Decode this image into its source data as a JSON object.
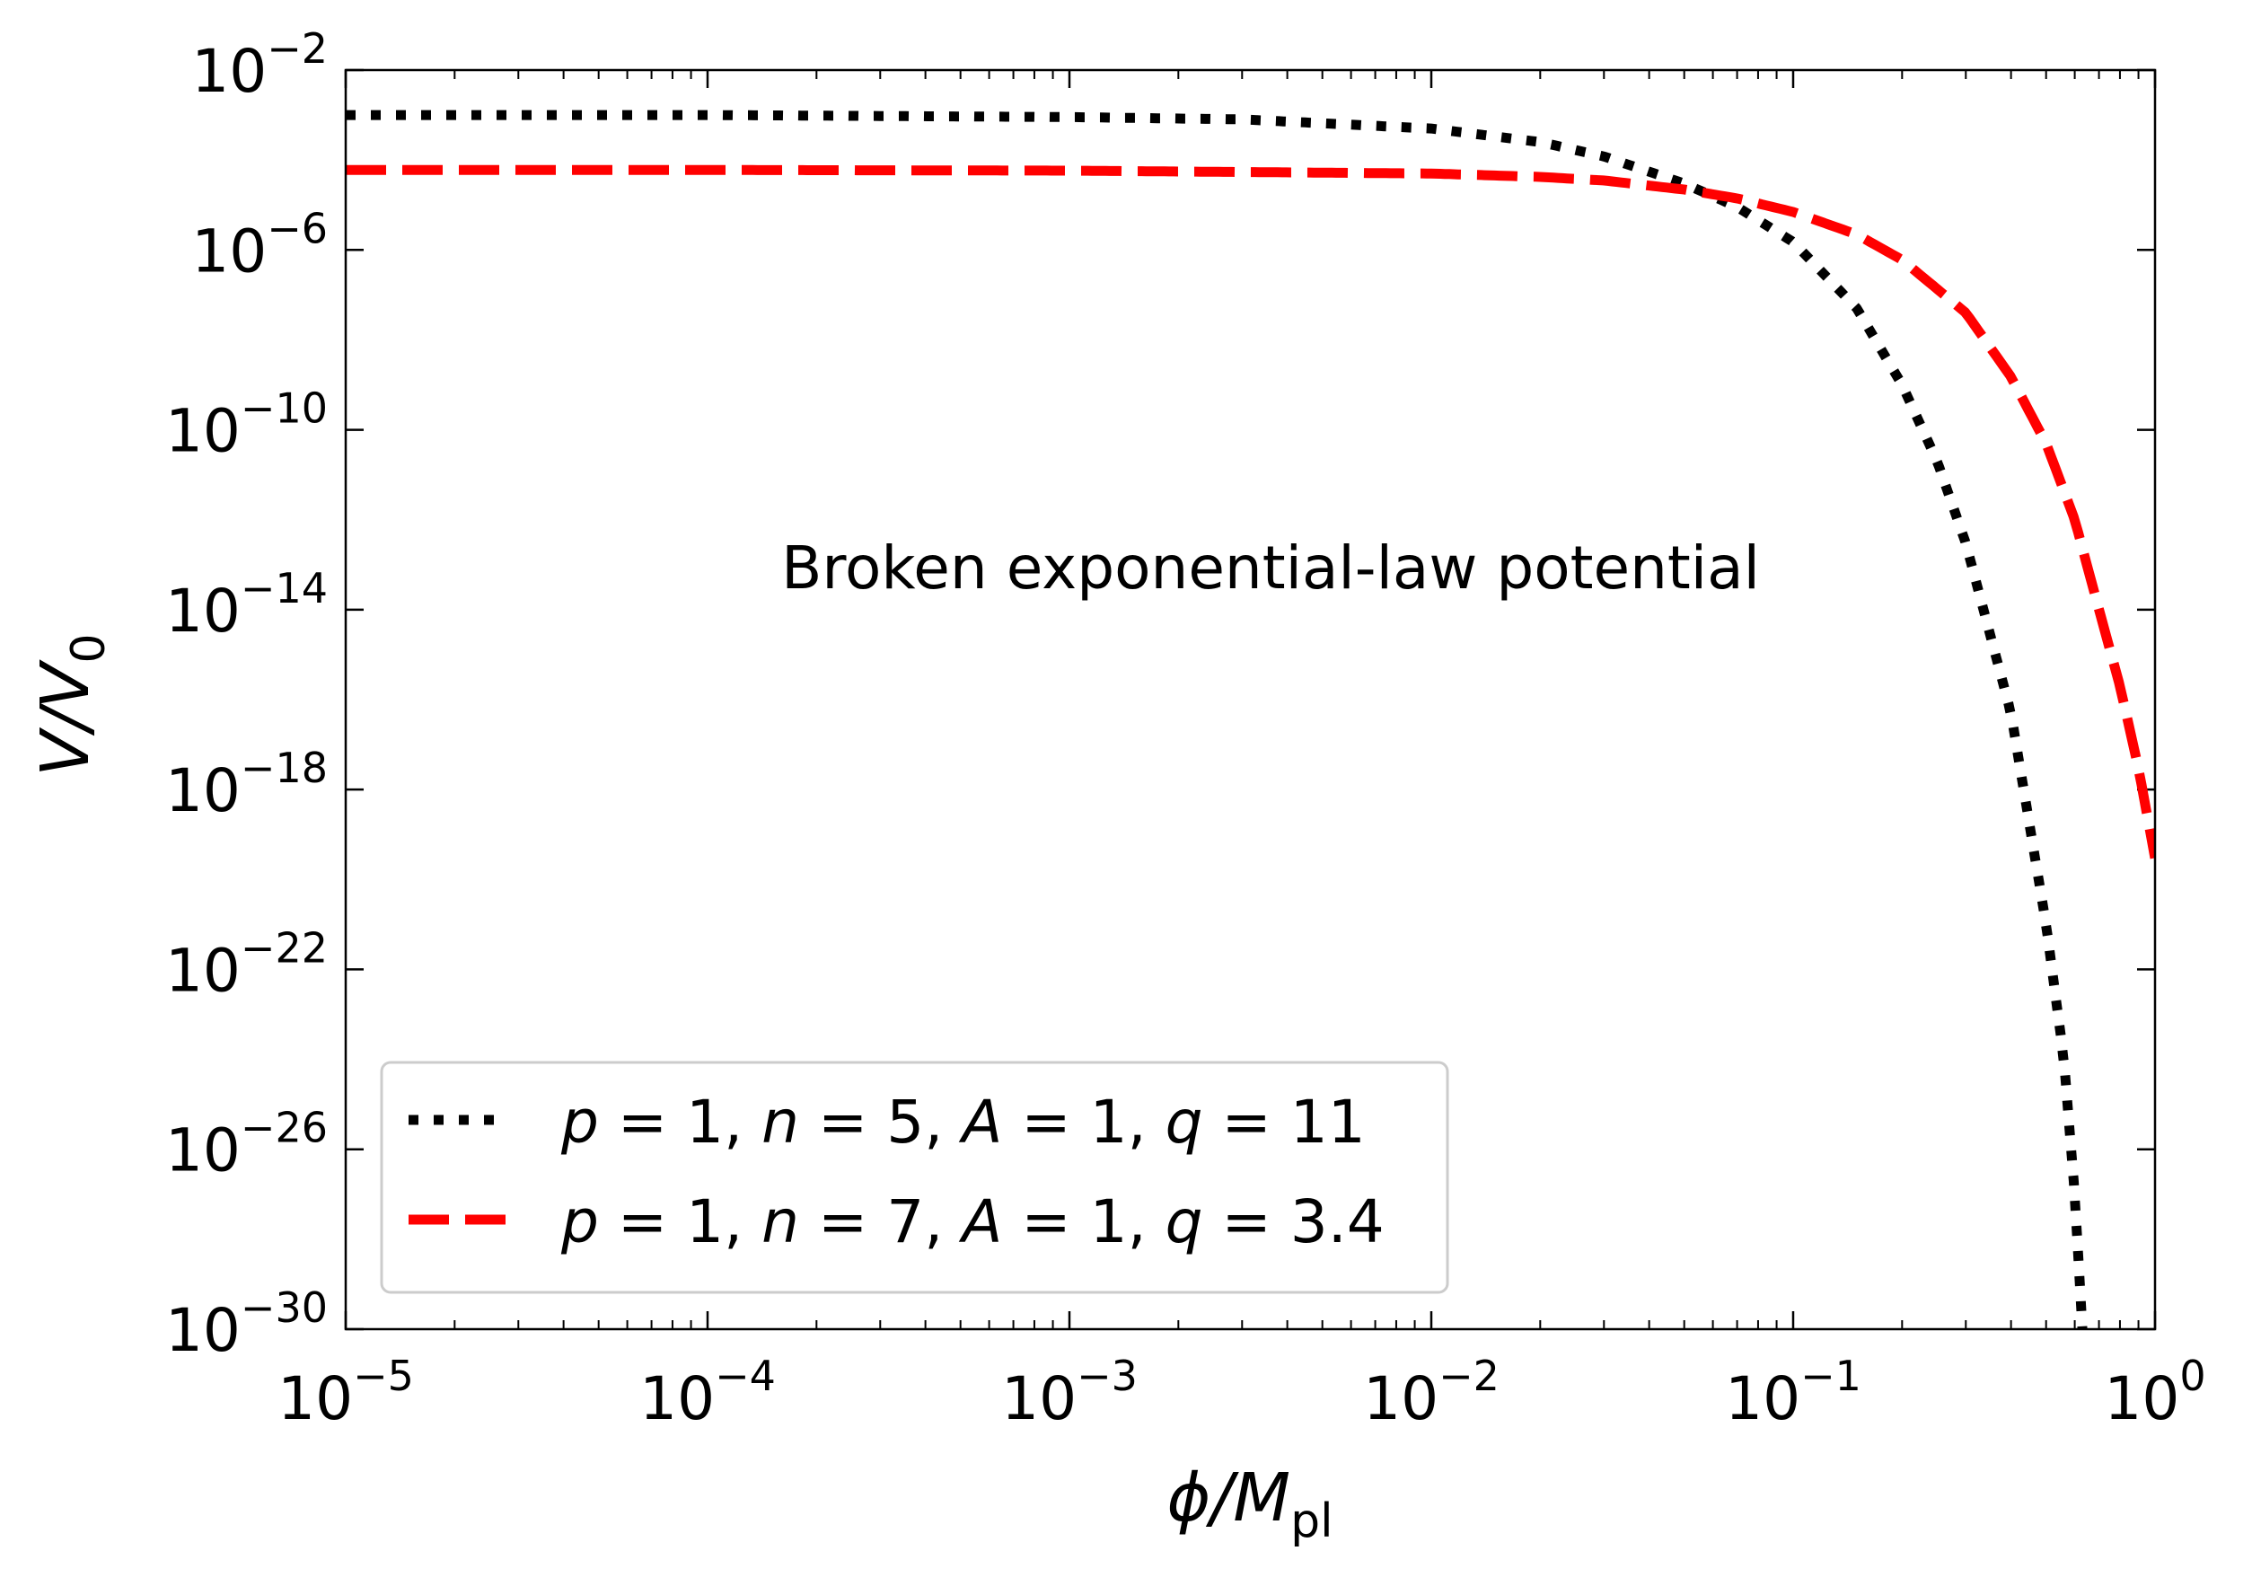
{
  "chart_data": {
    "type": "line",
    "x_scale": "log",
    "y_scale": "log",
    "xlim": [
      1e-05,
      1
    ],
    "ylim": [
      1e-30,
      0.01
    ],
    "xlabel": {
      "main": "ϕ/M",
      "sub": "pl"
    },
    "ylabel": {
      "main": "V/V",
      "sub": "0"
    },
    "annotation": "Broken exponential-law potential",
    "x_ticks": [
      {
        "base": "10",
        "exp": "−5",
        "value": 1e-05
      },
      {
        "base": "10",
        "exp": "−4",
        "value": 0.0001
      },
      {
        "base": "10",
        "exp": "−3",
        "value": 0.001
      },
      {
        "base": "10",
        "exp": "−2",
        "value": 0.01
      },
      {
        "base": "10",
        "exp": "−1",
        "value": 0.1
      },
      {
        "base": "10",
        "exp": "0",
        "value": 1
      }
    ],
    "y_ticks": [
      {
        "base": "10",
        "exp": "−2",
        "value": 0.01
      },
      {
        "base": "10",
        "exp": "−6",
        "value": 1e-06
      },
      {
        "base": "10",
        "exp": "−10",
        "value": 1e-10
      },
      {
        "base": "10",
        "exp": "−14",
        "value": 1e-14
      },
      {
        "base": "10",
        "exp": "−18",
        "value": 1e-18
      },
      {
        "base": "10",
        "exp": "−22",
        "value": 1e-22
      },
      {
        "base": "10",
        "exp": "−26",
        "value": 1e-26
      },
      {
        "base": "10",
        "exp": "−30",
        "value": 1e-30
      }
    ],
    "legend_position": "lower-left",
    "series": [
      {
        "name": "p = 1, n = 5, A = 1, q = 11",
        "label_parts": [
          "p",
          " = 1, ",
          "n",
          " = 5, ",
          "A",
          " = 1, ",
          "q",
          " = 11"
        ],
        "color": "#000000",
        "style": "dotted",
        "x": [
          1e-05,
          0.0001,
          0.001,
          0.003,
          0.01,
          0.02,
          0.03,
          0.05,
          0.07,
          0.1,
          0.15,
          0.2,
          0.25,
          0.3,
          0.4,
          0.5,
          0.56,
          0.6,
          0.63
        ],
        "y": [
          0.001,
          0.001,
          0.0009,
          0.0008,
          0.0005,
          0.00025,
          0.00012,
          3e-05,
          9e-06,
          1.5e-06,
          5e-08,
          1e-09,
          2e-11,
          3e-13,
          5e-17,
          1e-21,
          1e-24,
          1e-27,
          1e-30
        ]
      },
      {
        "name": "p = 1, n = 7, A = 1, q = 3.4",
        "label_parts": [
          "p",
          " = 1, ",
          "n",
          " = 7, ",
          "A",
          " = 1, ",
          "q",
          " = 3.4"
        ],
        "color": "#ff0000",
        "style": "dashed",
        "x": [
          1e-05,
          0.0001,
          0.001,
          0.01,
          0.02,
          0.03,
          0.05,
          0.07,
          0.1,
          0.15,
          0.2,
          0.3,
          0.4,
          0.5,
          0.6,
          0.7,
          0.8,
          0.9,
          1
        ],
        "y": [
          6e-05,
          6e-05,
          5.8e-05,
          5e-05,
          4.2e-05,
          3.5e-05,
          2.2e-05,
          1.4e-05,
          7e-06,
          2.2e-06,
          6e-07,
          4e-08,
          1.5e-09,
          5e-11,
          1e-12,
          1e-14,
          2e-16,
          3e-18,
          3e-20
        ]
      }
    ]
  }
}
